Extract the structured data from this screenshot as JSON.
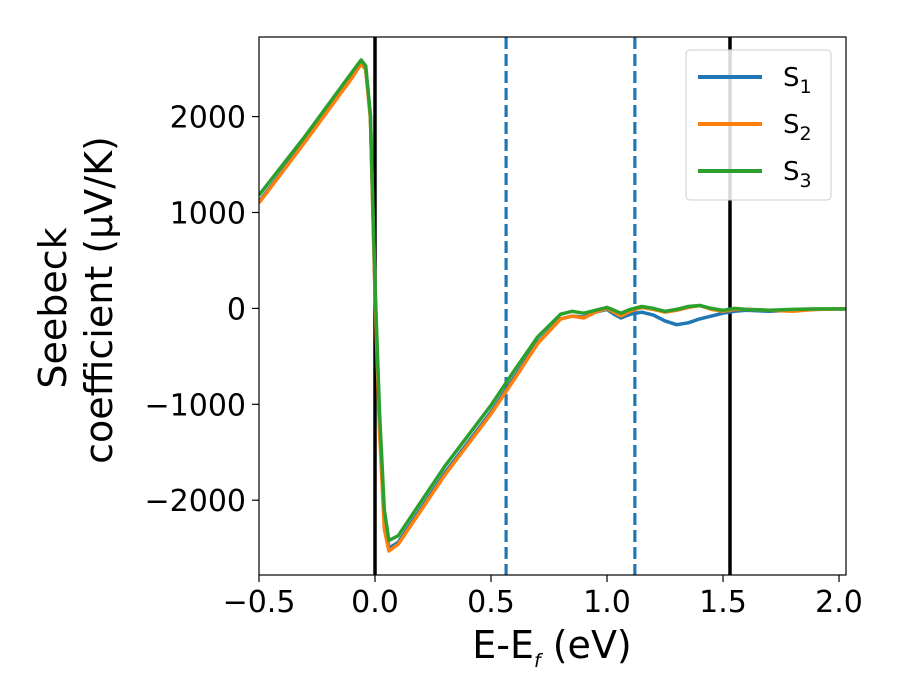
{
  "chart_data": {
    "type": "line",
    "xlabel": {
      "main": "E-E",
      "sub": "f",
      "tail": " (eV)"
    },
    "ylabel": {
      "line1": "Seebeck",
      "line2": "coefficient  (μV/K)"
    },
    "xlim": [
      -0.5,
      2.03
    ],
    "ylim": [
      -2780,
      2830
    ],
    "xticks": [
      -0.5,
      0.0,
      0.5,
      1.0,
      1.5,
      2.0
    ],
    "xtick_labels": [
      "−0.5",
      "0.0",
      "0.5",
      "1.0",
      "1.5",
      "2.0"
    ],
    "yticks": [
      -2000,
      -1000,
      0,
      1000,
      2000
    ],
    "ytick_labels": [
      "−2000",
      "−1000",
      "0",
      "1000",
      "2000"
    ],
    "vlines": [
      {
        "x": 0.0,
        "style": "solid",
        "color": "#000000"
      },
      {
        "x": 1.53,
        "style": "solid",
        "color": "#000000"
      },
      {
        "x": 0.565,
        "style": "dashed",
        "color": "#1f77b4"
      },
      {
        "x": 1.12,
        "style": "dashed",
        "color": "#1f77b4"
      }
    ],
    "legend": {
      "position": "top-right"
    },
    "series": [
      {
        "name": "S",
        "sub": "1",
        "color": "#1f77b4",
        "points": [
          [
            -0.5,
            1110
          ],
          [
            -0.3,
            1750
          ],
          [
            -0.1,
            2420
          ],
          [
            -0.06,
            2560
          ],
          [
            -0.04,
            2500
          ],
          [
            -0.02,
            2000
          ],
          [
            0.0,
            200
          ],
          [
            0.02,
            -1200
          ],
          [
            0.04,
            -2200
          ],
          [
            0.06,
            -2500
          ],
          [
            0.1,
            -2440
          ],
          [
            0.3,
            -1720
          ],
          [
            0.5,
            -1080
          ],
          [
            0.6,
            -720
          ],
          [
            0.7,
            -360
          ],
          [
            0.8,
            -110
          ],
          [
            0.85,
            -80
          ],
          [
            0.9,
            -90
          ],
          [
            0.95,
            -40
          ],
          [
            1.0,
            -10
          ],
          [
            1.03,
            -60
          ],
          [
            1.06,
            -100
          ],
          [
            1.1,
            -60
          ],
          [
            1.15,
            -40
          ],
          [
            1.2,
            -70
          ],
          [
            1.25,
            -130
          ],
          [
            1.3,
            -170
          ],
          [
            1.35,
            -150
          ],
          [
            1.4,
            -110
          ],
          [
            1.45,
            -80
          ],
          [
            1.5,
            -50
          ],
          [
            1.55,
            -30
          ],
          [
            1.6,
            -20
          ],
          [
            1.7,
            -30
          ],
          [
            1.8,
            -20
          ],
          [
            1.9,
            -10
          ],
          [
            2.03,
            -5
          ]
        ]
      },
      {
        "name": "S",
        "sub": "2",
        "color": "#ff7f0e",
        "points": [
          [
            -0.5,
            1100
          ],
          [
            -0.3,
            1740
          ],
          [
            -0.1,
            2400
          ],
          [
            -0.06,
            2550
          ],
          [
            -0.04,
            2490
          ],
          [
            -0.02,
            1980
          ],
          [
            0.0,
            150
          ],
          [
            0.02,
            -1300
          ],
          [
            0.04,
            -2300
          ],
          [
            0.06,
            -2530
          ],
          [
            0.1,
            -2460
          ],
          [
            0.3,
            -1740
          ],
          [
            0.5,
            -1100
          ],
          [
            0.6,
            -740
          ],
          [
            0.7,
            -370
          ],
          [
            0.8,
            -110
          ],
          [
            0.85,
            -80
          ],
          [
            0.9,
            -100
          ],
          [
            0.95,
            -40
          ],
          [
            1.0,
            0
          ],
          [
            1.03,
            -40
          ],
          [
            1.06,
            -80
          ],
          [
            1.1,
            -30
          ],
          [
            1.15,
            10
          ],
          [
            1.2,
            -10
          ],
          [
            1.25,
            -40
          ],
          [
            1.3,
            -20
          ],
          [
            1.35,
            10
          ],
          [
            1.4,
            30
          ],
          [
            1.45,
            -10
          ],
          [
            1.5,
            -30
          ],
          [
            1.55,
            -10
          ],
          [
            1.6,
            -10
          ],
          [
            1.7,
            -20
          ],
          [
            1.8,
            -30
          ],
          [
            1.9,
            -10
          ],
          [
            2.03,
            -5
          ]
        ]
      },
      {
        "name": "S",
        "sub": "3",
        "color": "#2ca02c",
        "points": [
          [
            -0.5,
            1180
          ],
          [
            -0.3,
            1800
          ],
          [
            -0.1,
            2460
          ],
          [
            -0.06,
            2590
          ],
          [
            -0.04,
            2530
          ],
          [
            -0.02,
            2020
          ],
          [
            0.0,
            250
          ],
          [
            0.02,
            -1100
          ],
          [
            0.04,
            -2100
          ],
          [
            0.06,
            -2420
          ],
          [
            0.1,
            -2370
          ],
          [
            0.3,
            -1650
          ],
          [
            0.5,
            -1010
          ],
          [
            0.6,
            -650
          ],
          [
            0.7,
            -300
          ],
          [
            0.8,
            -60
          ],
          [
            0.85,
            -30
          ],
          [
            0.9,
            -50
          ],
          [
            0.95,
            -20
          ],
          [
            1.0,
            10
          ],
          [
            1.03,
            -20
          ],
          [
            1.06,
            -50
          ],
          [
            1.1,
            -10
          ],
          [
            1.15,
            20
          ],
          [
            1.2,
            0
          ],
          [
            1.25,
            -30
          ],
          [
            1.3,
            -10
          ],
          [
            1.35,
            20
          ],
          [
            1.4,
            30
          ],
          [
            1.45,
            0
          ],
          [
            1.5,
            -20
          ],
          [
            1.55,
            0
          ],
          [
            1.6,
            -10
          ],
          [
            1.7,
            -20
          ],
          [
            1.8,
            -10
          ],
          [
            1.9,
            -5
          ],
          [
            2.03,
            -5
          ]
        ]
      }
    ]
  }
}
